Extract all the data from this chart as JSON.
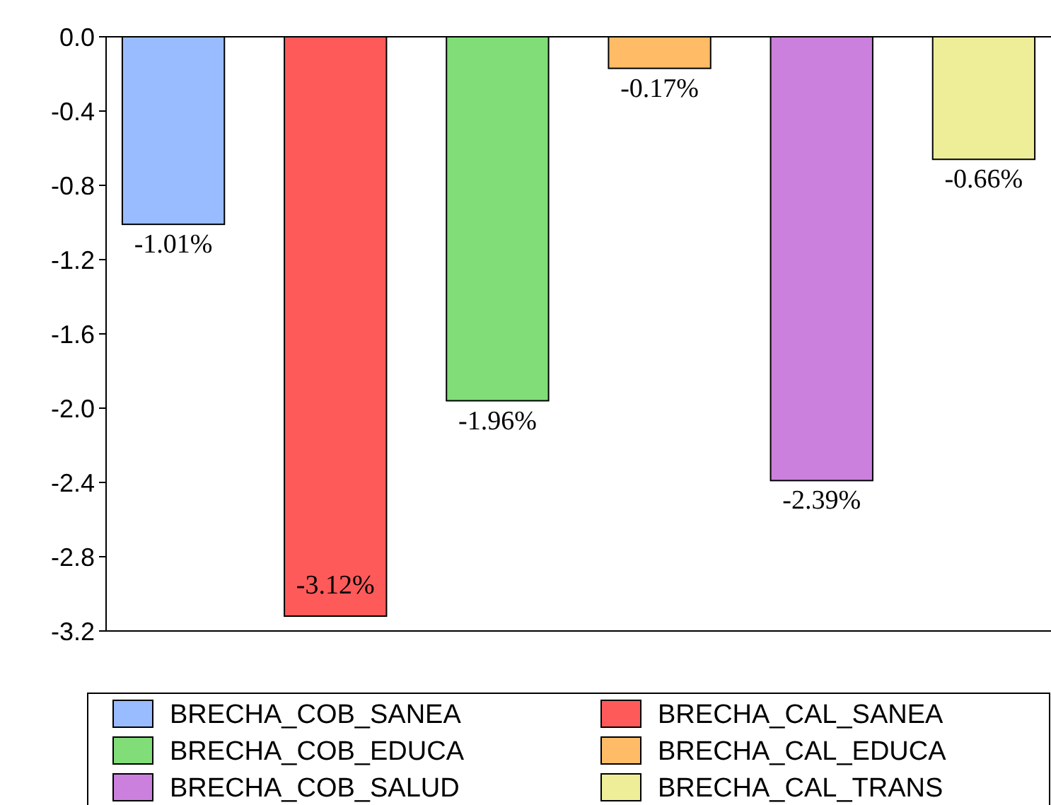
{
  "chart_data": {
    "type": "bar",
    "categories": [
      null
    ],
    "series": [
      {
        "name": "BRECHA_COB_SANEA",
        "color": "#99bbff",
        "values": [
          -1.01
        ],
        "value_labels": [
          "-1.01%"
        ]
      },
      {
        "name": "BRECHA_CAL_SANEA",
        "color": "#ff5a5a",
        "values": [
          -3.12
        ],
        "value_labels": [
          "-3.12%"
        ]
      },
      {
        "name": "BRECHA_COB_EDUCA",
        "color": "#80dd77",
        "values": [
          -1.96
        ],
        "value_labels": [
          "-1.96%"
        ]
      },
      {
        "name": "BRECHA_CAL_EDUCA",
        "color": "#ffbb66",
        "values": [
          -0.17
        ],
        "value_labels": [
          "-0.17%"
        ]
      },
      {
        "name": "BRECHA_COB_SALUD",
        "color": "#cc80dd",
        "values": [
          -2.39
        ],
        "value_labels": [
          "-2.39%"
        ]
      },
      {
        "name": "BRECHA_CAL_TRANS",
        "color": "#eeee99",
        "values": [
          -0.66
        ],
        "value_labels": [
          "-0.66%"
        ]
      }
    ],
    "ylim": [
      -3.2,
      0
    ],
    "yticks": [
      {
        "value": 0,
        "label": "0.0"
      },
      {
        "value": -0.4,
        "label": "-0.4"
      },
      {
        "value": -0.8,
        "label": "-0.8"
      },
      {
        "value": -1.2,
        "label": "-1.2"
      },
      {
        "value": -1.6,
        "label": "-1.6"
      },
      {
        "value": -2.0,
        "label": "-2.0"
      },
      {
        "value": -2.4,
        "label": "-2.4"
      },
      {
        "value": -2.8,
        "label": "-2.8"
      },
      {
        "value": -3.2,
        "label": "-3.2"
      }
    ],
    "grid": false,
    "legend": "bottom"
  }
}
